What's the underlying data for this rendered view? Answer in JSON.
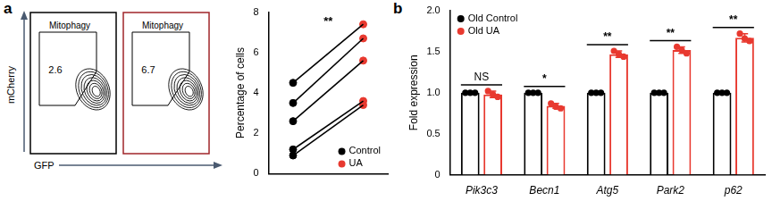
{
  "panel_labels": [
    "a",
    "b"
  ],
  "flow_plots": {
    "x_label": "GFP",
    "y_label": "mCherry",
    "plots": [
      {
        "gate": "Mitophagy",
        "value": 2.6,
        "color": "#000000"
      },
      {
        "gate": "Mitophagy",
        "value": 6.7,
        "color": "#a0262a"
      }
    ]
  },
  "chart_data": [
    {
      "type": "paired",
      "y_label": "Percentage of cells",
      "ylim": [
        0,
        8
      ],
      "yticks": [
        0,
        2,
        4,
        6,
        8
      ],
      "grid": false,
      "tick_labels": "y",
      "legend": "lower right",
      "annotations": [
        "**"
      ],
      "series": [
        {
          "name": "Control",
          "color": "#000000",
          "values": [
            4.5,
            3.5,
            2.6,
            1.2,
            0.9
          ]
        },
        {
          "name": "UA",
          "color": "#e8392f",
          "values": [
            7.4,
            6.7,
            5.6,
            3.6,
            3.4
          ]
        }
      ]
    },
    {
      "type": "bar",
      "y_label": "Fold expression",
      "categories": [
        "Pik3c3",
        "Becn1",
        "Atg5",
        "Park2",
        "p62"
      ],
      "ylim": [
        0,
        2
      ],
      "yticks": [
        0,
        0.5,
        {
          "value": 1,
          "label": "1.0"
        },
        1.5,
        {
          "value": 2,
          "label": "2.0"
        }
      ],
      "grid": false,
      "legend": "upper left",
      "annotations": [
        "NS",
        "*",
        "**",
        "**",
        "**"
      ],
      "series": [
        {
          "name": "Old Control",
          "color": "#000000",
          "values": [
            1.0,
            1.0,
            1.0,
            1.0,
            1.0
          ],
          "error": [
            0,
            0,
            0,
            0,
            0
          ],
          "points": [
            [
              1.0,
              1.0,
              1.0
            ],
            [
              1.0,
              1.0,
              1.0
            ],
            [
              1.0,
              1.0,
              1.0
            ],
            [
              1.0,
              1.0,
              1.0
            ],
            [
              1.0,
              1.0,
              1.0
            ]
          ]
        },
        {
          "name": "Old UA",
          "color": "#e8392f",
          "values": [
            0.98,
            0.84,
            1.47,
            1.52,
            1.67
          ],
          "error": [
            0.04,
            0.03,
            0.04,
            0.04,
            0.05
          ],
          "points": [
            [
              1.02,
              0.98,
              0.95
            ],
            [
              0.87,
              0.83,
              0.81
            ],
            [
              1.51,
              1.47,
              1.44
            ],
            [
              1.56,
              1.52,
              1.48
            ],
            [
              1.72,
              1.66,
              1.63
            ]
          ]
        }
      ]
    }
  ]
}
